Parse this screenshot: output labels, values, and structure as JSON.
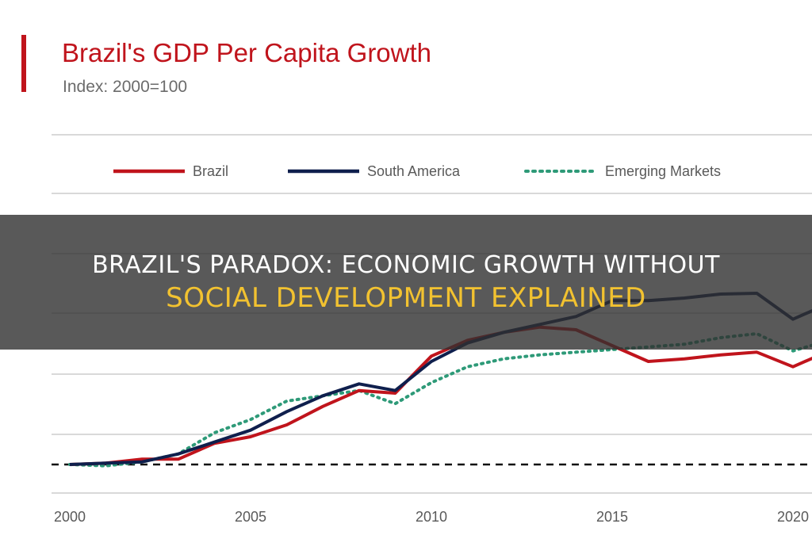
{
  "headline": {
    "line1": "BRAZIL'S PARADOX: ECONOMIC GROWTH WITHOUT",
    "line2": "SOCIAL DEVELOPMENT EXPLAINED"
  },
  "chart_data": {
    "type": "line",
    "title": "Brazil's GDP Per Capita Growth",
    "subtitle": "Index: 2000=100",
    "xlabel": "",
    "ylabel": "",
    "x_ticks": [
      2000,
      2005,
      2010,
      2015,
      2020
    ],
    "x_tick_labels": [
      "2000",
      "2005",
      "2010",
      "2015",
      "2020"
    ],
    "xlim": [
      2000,
      2021
    ],
    "ylim": [
      95,
      200
    ],
    "reference_line": 100,
    "grid": true,
    "legend_position": "top",
    "series": [
      {
        "name": "Brazil",
        "color": "#c0141c",
        "style": "solid",
        "x": [
          2000,
          2001,
          2002,
          2003,
          2004,
          2005,
          2006,
          2007,
          2008,
          2009,
          2010,
          2011,
          2012,
          2013,
          2014,
          2015,
          2016,
          2017,
          2018,
          2019,
          2020,
          2021
        ],
        "y": [
          100,
          100.5,
          102,
          102,
          108,
          110.5,
          115,
          122,
          128,
          127,
          141,
          147,
          150,
          152,
          151,
          145,
          139,
          140,
          141.5,
          142.5,
          137,
          143
        ]
      },
      {
        "name": "South America",
        "color": "#0f1f4d",
        "style": "solid",
        "x": [
          2000,
          2001,
          2002,
          2003,
          2004,
          2005,
          2006,
          2007,
          2008,
          2009,
          2010,
          2011,
          2012,
          2013,
          2014,
          2015,
          2016,
          2017,
          2018,
          2019,
          2020,
          2021
        ],
        "y": [
          100,
          100.5,
          101,
          104,
          108.5,
          113,
          120,
          126,
          130.5,
          128,
          139,
          146,
          150,
          153,
          156,
          162,
          162,
          163,
          164.5,
          164.8,
          155,
          161
        ]
      },
      {
        "name": "Emerging Markets",
        "color": "#2e9a78",
        "style": "dotted",
        "x": [
          2000,
          2001,
          2002,
          2003,
          2004,
          2005,
          2006,
          2007,
          2008,
          2009,
          2010,
          2011,
          2012,
          2013,
          2014,
          2015,
          2016,
          2017,
          2018,
          2019,
          2020,
          2021
        ],
        "y": [
          100,
          99.5,
          101,
          104,
          112,
          117,
          124,
          126,
          128,
          123,
          131,
          137,
          140,
          141.5,
          142.5,
          143.5,
          144.5,
          145.5,
          148,
          149.5,
          143,
          147
        ]
      }
    ]
  }
}
